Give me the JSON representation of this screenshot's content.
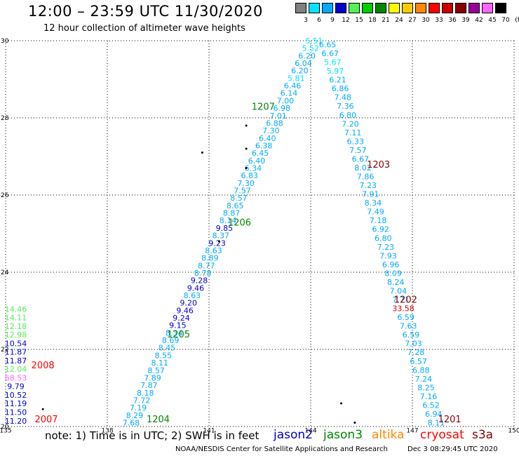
{
  "header": {
    "title": "12:00 – 23:59 UTC 11/30/2020",
    "subtitle": "12 hour collection of altimeter wave heights"
  },
  "color_scale": {
    "unit_label": "(ft)",
    "bins": [
      {
        "label": "3",
        "color": "#808080"
      },
      {
        "label": "6",
        "color": "#00e5ff"
      },
      {
        "label": "9",
        "color": "#00aaff"
      },
      {
        "label": "12",
        "color": "#0000cc"
      },
      {
        "label": "15",
        "color": "#55ee55"
      },
      {
        "label": "18",
        "color": "#00cc00"
      },
      {
        "label": "21",
        "color": "#008800"
      },
      {
        "label": "24",
        "color": "#ffff00"
      },
      {
        "label": "27",
        "color": "#ffcc00"
      },
      {
        "label": "30",
        "color": "#ff8800"
      },
      {
        "label": "33",
        "color": "#ff0000"
      },
      {
        "label": "36",
        "color": "#cc0000"
      },
      {
        "label": "39",
        "color": "#880000"
      },
      {
        "label": "42",
        "color": "#990099"
      },
      {
        "label": "45",
        "color": "#ff66ff"
      },
      {
        "label": "70",
        "color": "#000000"
      }
    ]
  },
  "chart_data": {
    "type": "scatter",
    "xlim": [
      135,
      150
    ],
    "ylim": [
      20,
      30
    ],
    "x_ticks": [
      "135",
      "138",
      "141",
      "144",
      "147",
      "150"
    ],
    "y_ticks": [
      "20",
      "22",
      "24",
      "26",
      "28",
      "30"
    ],
    "grid": true,
    "track_a": {
      "start": [
        138.7,
        20.1
      ],
      "end": [
        144.1,
        30.0
      ],
      "values": [
        "7.68",
        "8.29",
        "7.19",
        "7.72",
        "8.18",
        "7.87",
        "7.89",
        "8.57",
        "8.11",
        "8.55",
        "8.45",
        "8.69",
        "8.34",
        "9.15",
        "9.24",
        "9.46",
        "9.20",
        "8.63",
        "9.46",
        "9.28",
        "8.78",
        "8.77",
        "8.89",
        "8.63",
        "9.23",
        "8.37",
        "9.85",
        "8.14",
        "8.87",
        "8.65",
        "8.57",
        "7.57",
        "7.30",
        "6.83",
        "6.34",
        "6.40",
        "6.45",
        "6.38",
        "6.40",
        "7.30",
        "6.88",
        "7.01",
        "6.98",
        "7.00",
        "6.14",
        "6.46",
        "5.81",
        "6.20",
        "6.04",
        "6.20",
        "5.52",
        "5.51"
      ]
    },
    "track_b": {
      "start": [
        147.7,
        20.1
      ],
      "end": [
        144.5,
        29.9
      ],
      "values": [
        "8.11",
        "6.94",
        "6.52",
        "7.16",
        "8.25",
        "7.24",
        "6.88",
        "6.57",
        "7.28",
        "7.03",
        "6.59",
        "7.63",
        "6.59",
        "33.58",
        "7.71",
        "7.04",
        "8.24",
        "8.09",
        "6.96",
        "7.93",
        "7.23",
        "6.80",
        "6.92",
        "7.18",
        "7.49",
        "8.34",
        "7.91",
        "7.23",
        "7.86",
        "8.02",
        "6.67",
        "7.57",
        "6.33",
        "7.11",
        "7.20",
        "6.80",
        "7.36",
        "7.48",
        "6.86",
        "6.21",
        "5.97",
        "5.67",
        "6.67",
        "6.65"
      ]
    },
    "track_c": {
      "x": 135.3,
      "y_start": 20.15,
      "y_end": 23.05,
      "values": [
        "11.20",
        "11.50",
        "11.19",
        "10.52",
        "9.79",
        "68.53",
        "12.04",
        "11.87",
        "11.87",
        "10.54",
        "12.98",
        "12.18",
        "14.11",
        "14.46"
      ]
    },
    "highlight_values": [
      {
        "track": "track_b",
        "index": 13,
        "color": "#cc0000"
      },
      {
        "track": "track_c",
        "index": 5,
        "color": "#ff66ff"
      }
    ],
    "time_labels": [
      {
        "text": "1207",
        "x": 142.6,
        "y": 28.3,
        "color": "#008800"
      },
      {
        "text": "1206",
        "x": 141.9,
        "y": 25.3,
        "color": "#008800"
      },
      {
        "text": "1205",
        "x": 140.1,
        "y": 22.4,
        "color": "#008800"
      },
      {
        "text": "1204",
        "x": 139.5,
        "y": 20.2,
        "color": "#008800"
      },
      {
        "text": "1203",
        "x": 146.0,
        "y": 26.8,
        "color": "#880000"
      },
      {
        "text": "1202",
        "x": 146.8,
        "y": 23.3,
        "color": "#880000"
      },
      {
        "text": "1201",
        "x": 148.1,
        "y": 20.2,
        "color": "#880000"
      },
      {
        "text": "2008",
        "x": 136.1,
        "y": 21.6,
        "color": "#ff0000"
      },
      {
        "text": "2007",
        "x": 136.2,
        "y": 20.2,
        "color": "#ff0000"
      }
    ],
    "dots": [
      [
        140.8,
        27.1
      ],
      [
        142.1,
        27.8
      ],
      [
        142.1,
        27.2
      ],
      [
        142.1,
        26.7
      ],
      [
        144.9,
        20.6
      ],
      [
        145.3,
        20.1
      ],
      [
        141.3,
        24.8
      ],
      [
        136.1,
        20.45
      ]
    ]
  },
  "footer": {
    "note": "note:  1) Time is in UTC;  2) SWH is in feet",
    "satellites": [
      {
        "name": "jason2",
        "color": "#0000cc"
      },
      {
        "name": "jason3",
        "color": "#008800"
      },
      {
        "name": "altika",
        "color": "#ff8800"
      },
      {
        "name": "cryosat",
        "color": "#ff0000"
      },
      {
        "name": "s3a",
        "color": "#880000"
      }
    ],
    "credit": "NOAA/NESDIS Center for Satellite Applications and Research",
    "timestamp": "Dec  3 08:29:45 UTC 2020"
  }
}
